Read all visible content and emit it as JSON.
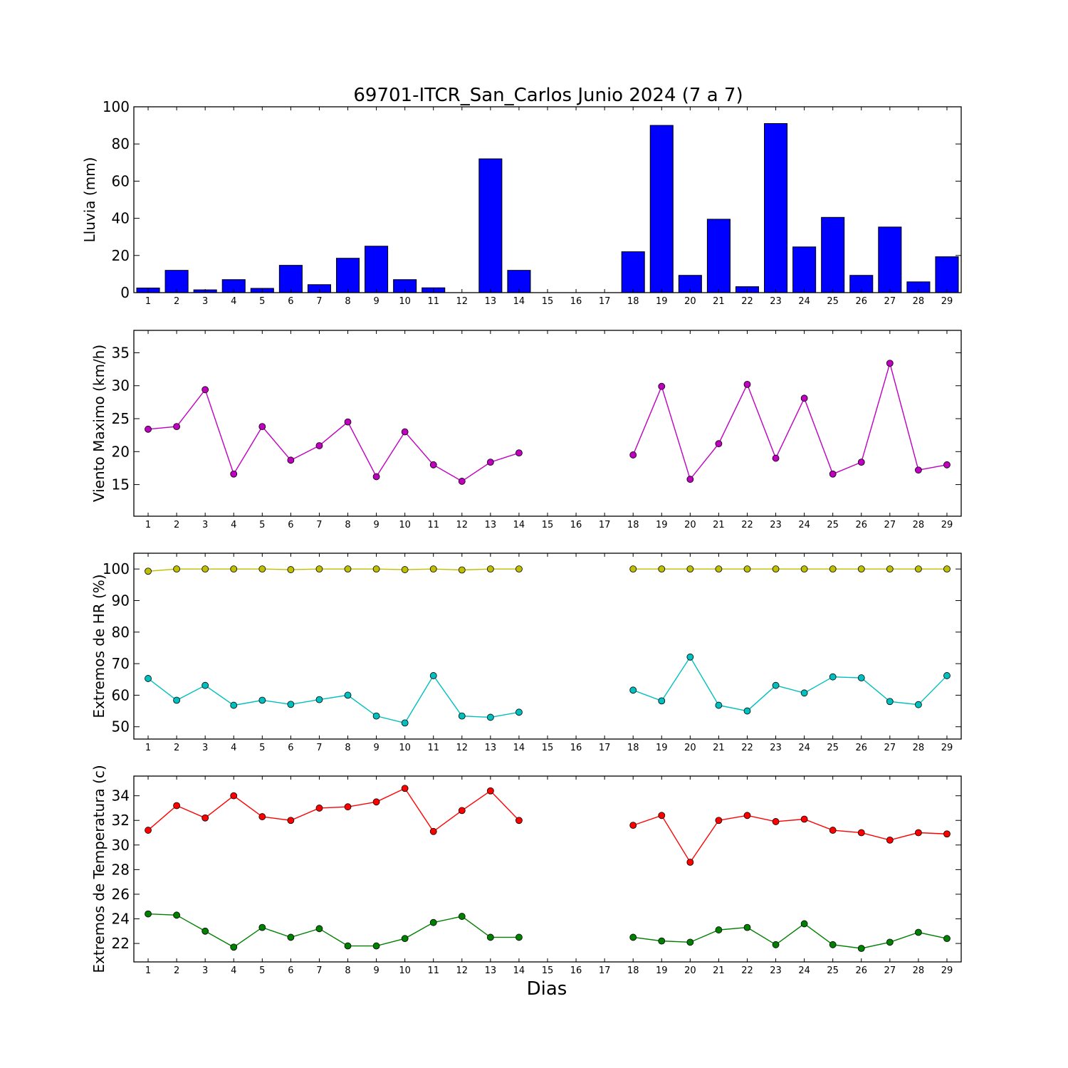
{
  "chart_data": {
    "title": "69701-ITCR_San_Carlos Junio 2024  (7 a 7)",
    "xlabel": "Dias",
    "days": [
      1,
      2,
      3,
      4,
      5,
      6,
      7,
      8,
      9,
      10,
      11,
      12,
      13,
      14,
      15,
      16,
      17,
      18,
      19,
      20,
      21,
      22,
      23,
      24,
      25,
      26,
      27,
      28,
      29
    ],
    "panels": [
      {
        "type": "bar",
        "ylabel": "Lluvia (mm)",
        "ylim": [
          0,
          100
        ],
        "yticks": [
          0,
          20,
          40,
          60,
          80,
          100
        ],
        "series": [
          {
            "color": "#0000ff",
            "values": [
              2.5,
              12,
              1.5,
              7,
              2.3,
              14.7,
              4.3,
              18.5,
              25,
              7,
              2.6,
              0,
              72,
              12,
              0,
              0,
              0,
              22,
              90,
              9.3,
              39.5,
              3.2,
              91,
              24.6,
              40.5,
              9.3,
              35.3,
              5.8,
              19.3
            ]
          }
        ]
      },
      {
        "type": "line",
        "ylabel": "Viento Maximo (km/h)",
        "ylim": [
          10.2,
          38.4
        ],
        "yticks": [
          15,
          20,
          25,
          30,
          35
        ],
        "series": [
          {
            "color": "#bf00bf",
            "values": [
              23.4,
              23.8,
              29.4,
              16.6,
              23.8,
              18.7,
              20.9,
              24.5,
              16.2,
              23.0,
              18.0,
              15.5,
              18.4,
              19.8,
              null,
              null,
              null,
              19.5,
              29.9,
              15.8,
              21.2,
              30.2,
              19.0,
              28.1,
              16.6,
              18.4,
              33.4,
              17.2,
              18.0
            ]
          }
        ]
      },
      {
        "type": "line",
        "ylabel": "Extremos de HR (%)",
        "ylim": [
          46.1,
          105
        ],
        "yticks": [
          50,
          60,
          70,
          80,
          90,
          100
        ],
        "series": [
          {
            "color": "#bfbf00",
            "values": [
              99.3,
              100,
              100,
              100,
              100,
              99.8,
              100,
              100,
              100,
              99.8,
              100,
              99.7,
              100,
              100,
              null,
              null,
              null,
              100,
              100,
              100,
              100,
              100,
              100,
              100,
              100,
              100,
              100,
              100,
              100
            ]
          },
          {
            "color": "#00bfbf",
            "values": [
              65.3,
              58.4,
              63.1,
              56.8,
              58.4,
              57.1,
              58.6,
              60.0,
              53.4,
              51.2,
              66.2,
              53.4,
              53.0,
              54.6,
              null,
              null,
              null,
              61.6,
              58.2,
              72.1,
              56.8,
              55.0,
              63.1,
              60.7,
              65.8,
              65.5,
              58.0,
              57.0,
              66.2
            ]
          }
        ]
      },
      {
        "type": "line",
        "ylabel": "Extremos de Temperatura (c)",
        "ylim": [
          20.5,
          35.6
        ],
        "yticks": [
          22,
          24,
          26,
          28,
          30,
          32,
          34
        ],
        "series": [
          {
            "color": "#ff0000",
            "values": [
              31.2,
              33.2,
              32.2,
              34.0,
              32.3,
              32.0,
              33.0,
              33.1,
              33.5,
              34.6,
              31.1,
              32.8,
              34.4,
              32.0,
              null,
              null,
              null,
              31.6,
              32.4,
              28.6,
              32.0,
              32.4,
              31.9,
              32.1,
              31.2,
              31.0,
              30.4,
              31.0,
              30.9
            ]
          },
          {
            "color": "#008000",
            "values": [
              24.4,
              24.3,
              23.0,
              21.7,
              23.3,
              22.5,
              23.2,
              21.8,
              21.8,
              22.4,
              23.7,
              24.2,
              22.5,
              22.5,
              null,
              null,
              null,
              22.5,
              22.2,
              22.1,
              23.1,
              23.3,
              21.9,
              23.6,
              21.9,
              21.6,
              22.1,
              22.9,
              22.4
            ]
          }
        ]
      }
    ]
  }
}
